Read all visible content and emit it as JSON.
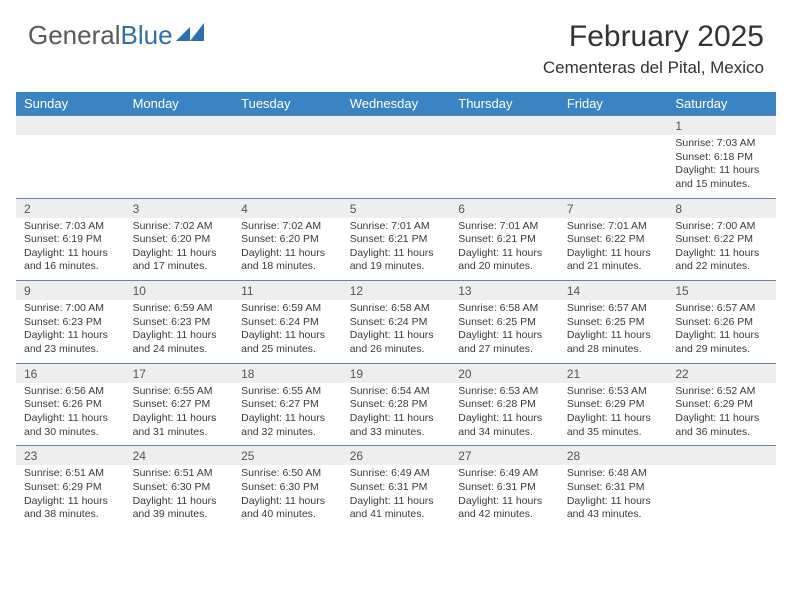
{
  "logo": {
    "part1": "General",
    "part2": "Blue"
  },
  "title": "February 2025",
  "location": "Cementeras del Pital, Mexico",
  "headerRow": {
    "bg": "#3b84c4",
    "fg": "#ffffff",
    "days": [
      "Sunday",
      "Monday",
      "Tuesday",
      "Wednesday",
      "Thursday",
      "Friday",
      "Saturday"
    ]
  },
  "dateRowBg": "#eeeeee",
  "dateRowBorder": "#6a84a0",
  "textColor": "#3a3a3a",
  "logoIconColor": "#2f6fb0",
  "weeks": [
    {
      "dates": [
        "",
        "",
        "",
        "",
        "",
        "",
        "1"
      ],
      "info": [
        "",
        "",
        "",
        "",
        "",
        "",
        "Sunrise: 7:03 AM\nSunset: 6:18 PM\nDaylight: 11 hours and 15 minutes."
      ]
    },
    {
      "dates": [
        "2",
        "3",
        "4",
        "5",
        "6",
        "7",
        "8"
      ],
      "info": [
        "Sunrise: 7:03 AM\nSunset: 6:19 PM\nDaylight: 11 hours and 16 minutes.",
        "Sunrise: 7:02 AM\nSunset: 6:20 PM\nDaylight: 11 hours and 17 minutes.",
        "Sunrise: 7:02 AM\nSunset: 6:20 PM\nDaylight: 11 hours and 18 minutes.",
        "Sunrise: 7:01 AM\nSunset: 6:21 PM\nDaylight: 11 hours and 19 minutes.",
        "Sunrise: 7:01 AM\nSunset: 6:21 PM\nDaylight: 11 hours and 20 minutes.",
        "Sunrise: 7:01 AM\nSunset: 6:22 PM\nDaylight: 11 hours and 21 minutes.",
        "Sunrise: 7:00 AM\nSunset: 6:22 PM\nDaylight: 11 hours and 22 minutes."
      ]
    },
    {
      "dates": [
        "9",
        "10",
        "11",
        "12",
        "13",
        "14",
        "15"
      ],
      "info": [
        "Sunrise: 7:00 AM\nSunset: 6:23 PM\nDaylight: 11 hours and 23 minutes.",
        "Sunrise: 6:59 AM\nSunset: 6:23 PM\nDaylight: 11 hours and 24 minutes.",
        "Sunrise: 6:59 AM\nSunset: 6:24 PM\nDaylight: 11 hours and 25 minutes.",
        "Sunrise: 6:58 AM\nSunset: 6:24 PM\nDaylight: 11 hours and 26 minutes.",
        "Sunrise: 6:58 AM\nSunset: 6:25 PM\nDaylight: 11 hours and 27 minutes.",
        "Sunrise: 6:57 AM\nSunset: 6:25 PM\nDaylight: 11 hours and 28 minutes.",
        "Sunrise: 6:57 AM\nSunset: 6:26 PM\nDaylight: 11 hours and 29 minutes."
      ]
    },
    {
      "dates": [
        "16",
        "17",
        "18",
        "19",
        "20",
        "21",
        "22"
      ],
      "info": [
        "Sunrise: 6:56 AM\nSunset: 6:26 PM\nDaylight: 11 hours and 30 minutes.",
        "Sunrise: 6:55 AM\nSunset: 6:27 PM\nDaylight: 11 hours and 31 minutes.",
        "Sunrise: 6:55 AM\nSunset: 6:27 PM\nDaylight: 11 hours and 32 minutes.",
        "Sunrise: 6:54 AM\nSunset: 6:28 PM\nDaylight: 11 hours and 33 minutes.",
        "Sunrise: 6:53 AM\nSunset: 6:28 PM\nDaylight: 11 hours and 34 minutes.",
        "Sunrise: 6:53 AM\nSunset: 6:29 PM\nDaylight: 11 hours and 35 minutes.",
        "Sunrise: 6:52 AM\nSunset: 6:29 PM\nDaylight: 11 hours and 36 minutes."
      ]
    },
    {
      "dates": [
        "23",
        "24",
        "25",
        "26",
        "27",
        "28",
        ""
      ],
      "info": [
        "Sunrise: 6:51 AM\nSunset: 6:29 PM\nDaylight: 11 hours and 38 minutes.",
        "Sunrise: 6:51 AM\nSunset: 6:30 PM\nDaylight: 11 hours and 39 minutes.",
        "Sunrise: 6:50 AM\nSunset: 6:30 PM\nDaylight: 11 hours and 40 minutes.",
        "Sunrise: 6:49 AM\nSunset: 6:31 PM\nDaylight: 11 hours and 41 minutes.",
        "Sunrise: 6:49 AM\nSunset: 6:31 PM\nDaylight: 11 hours and 42 minutes.",
        "Sunrise: 6:48 AM\nSunset: 6:31 PM\nDaylight: 11 hours and 43 minutes.",
        ""
      ]
    }
  ]
}
